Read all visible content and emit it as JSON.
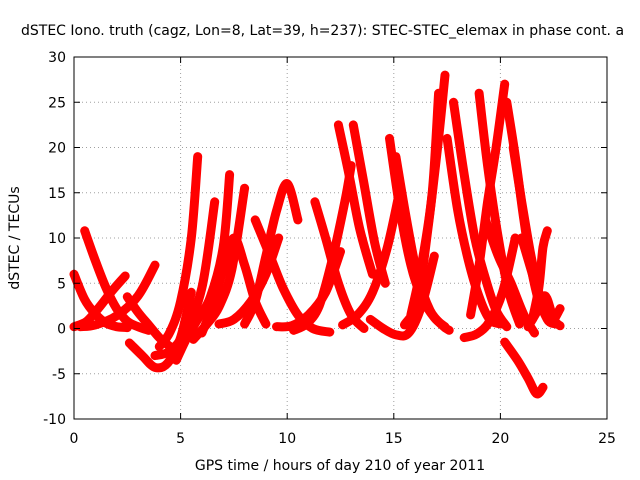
{
  "chart_data": {
    "type": "scatter",
    "title": "dSTEC Iono. truth (cagz, Lon=8, Lat=39, h=237): STEC-STEC_elemax in phase cont. a",
    "xlabel": "GPS time / hours of day 210 of year 2011",
    "ylabel": "dSTEC  / TECUs",
    "xlim": [
      0,
      25
    ],
    "ylim": [
      -10,
      30
    ],
    "xticks": [
      0,
      5,
      10,
      15,
      20,
      25
    ],
    "yticks": [
      -10,
      -5,
      0,
      5,
      10,
      15,
      20,
      25,
      30
    ],
    "grid": true,
    "marker": "plus",
    "color": "#ff0000",
    "series": [
      {
        "x": [
          0.0,
          0.5,
          1.0,
          1.5,
          2.0,
          2.5
        ],
        "y": [
          6.0,
          3.2,
          1.6,
          0.6,
          0.2,
          0.1
        ]
      },
      {
        "x": [
          0.0,
          0.6,
          1.2,
          1.8,
          2.4
        ],
        "y": [
          0.2,
          0.8,
          2.4,
          4.2,
          5.8
        ]
      },
      {
        "x": [
          0.5,
          1.0,
          1.5,
          2.0,
          2.5,
          3.0,
          3.5
        ],
        "y": [
          10.8,
          7.5,
          4.5,
          2.2,
          0.8,
          0.2,
          -0.2
        ]
      },
      {
        "x": [
          0.3,
          1.0,
          2.0,
          3.0,
          3.8
        ],
        "y": [
          0.2,
          0.4,
          1.4,
          3.6,
          7.0
        ]
      },
      {
        "x": [
          2.5,
          3.0,
          3.5,
          4.0,
          4.5
        ],
        "y": [
          3.5,
          1.8,
          0.4,
          -1.0,
          -2.0
        ]
      },
      {
        "x": [
          2.6,
          3.2,
          3.8,
          4.4,
          5.0,
          5.5
        ],
        "y": [
          -1.6,
          -3.0,
          -4.3,
          -3.8,
          -1.0,
          4.0
        ]
      },
      {
        "x": [
          4.0,
          4.5,
          5.0,
          5.5,
          5.8
        ],
        "y": [
          -2.0,
          -0.4,
          3.0,
          10.0,
          19.0
        ]
      },
      {
        "x": [
          3.8,
          4.5,
          5.2,
          6.0,
          6.6
        ],
        "y": [
          -3.0,
          -2.5,
          -0.4,
          4.5,
          14.0
        ]
      },
      {
        "x": [
          4.8,
          5.3,
          5.8,
          6.4,
          7.0,
          7.3
        ],
        "y": [
          -3.5,
          -1.0,
          1.0,
          3.5,
          9.0,
          17.0
        ]
      },
      {
        "x": [
          5.6,
          6.2,
          6.8,
          7.4,
          8.0
        ],
        "y": [
          -1.2,
          0.4,
          2.4,
          6.5,
          15.5
        ]
      },
      {
        "x": [
          6.0,
          6.5,
          7.0,
          7.5,
          8.0,
          8.5,
          9.0
        ],
        "y": [
          -0.5,
          2.5,
          6.5,
          10.0,
          7.0,
          3.0,
          0.5
        ]
      },
      {
        "x": [
          6.8,
          7.5,
          8.3,
          9.0,
          9.6
        ],
        "y": [
          0.5,
          1.0,
          3.0,
          6.0,
          10.0
        ]
      },
      {
        "x": [
          8.0,
          8.5,
          9.0,
          9.5,
          10.0,
          10.5
        ],
        "y": [
          0.5,
          3.0,
          8.0,
          13.0,
          16.0,
          12.0
        ]
      },
      {
        "x": [
          8.5,
          9.2,
          9.8,
          10.5,
          11.2,
          12.0
        ],
        "y": [
          12.0,
          8.0,
          4.5,
          1.5,
          0.0,
          -0.4
        ]
      },
      {
        "x": [
          9.5,
          10.2,
          11.0,
          11.8,
          12.5
        ],
        "y": [
          0.2,
          0.3,
          1.5,
          4.0,
          8.5
        ]
      },
      {
        "x": [
          10.3,
          10.9,
          11.5,
          12.1,
          12.7,
          13.0
        ],
        "y": [
          -0.2,
          0.5,
          2.5,
          7.5,
          14.0,
          18.0
        ]
      },
      {
        "x": [
          11.3,
          11.8,
          12.4,
          13.0,
          13.6
        ],
        "y": [
          14.0,
          10.0,
          5.0,
          1.5,
          0.0
        ]
      },
      {
        "x": [
          12.4,
          12.9,
          13.4,
          14.0
        ],
        "y": [
          22.5,
          17.0,
          11.0,
          6.0
        ]
      },
      {
        "x": [
          12.6,
          13.3,
          14.0,
          14.7,
          15.3
        ],
        "y": [
          0.4,
          1.5,
          4.0,
          9.0,
          15.5
        ]
      },
      {
        "x": [
          13.1,
          13.6,
          14.1,
          14.6
        ],
        "y": [
          22.5,
          16.0,
          9.5,
          5.0
        ]
      },
      {
        "x": [
          13.9,
          14.5,
          15.1,
          15.7,
          16.3,
          16.9
        ],
        "y": [
          1.0,
          0.0,
          -0.7,
          -0.5,
          2.5,
          8.0
        ]
      },
      {
        "x": [
          14.8,
          15.3,
          15.8,
          16.3,
          16.9,
          17.4
        ],
        "y": [
          21.0,
          13.0,
          7.0,
          3.5,
          1.2,
          0.2
        ]
      },
      {
        "x": [
          15.1,
          15.6,
          16.1,
          16.7,
          17.3,
          17.6
        ],
        "y": [
          19.0,
          12.0,
          6.0,
          2.0,
          0.3,
          -0.2
        ]
      },
      {
        "x": [
          15.5,
          16.1,
          16.6,
          17.1,
          17.4
        ],
        "y": [
          0.4,
          3.0,
          11.0,
          21.0,
          28.0
        ]
      },
      {
        "x": [
          15.8,
          16.3,
          16.8,
          17.1
        ],
        "y": [
          1.5,
          7.0,
          15.0,
          26.0
        ]
      },
      {
        "x": [
          17.5,
          18.0,
          18.5,
          19.0,
          19.5,
          20.0
        ],
        "y": [
          21.0,
          13.0,
          7.5,
          3.5,
          1.0,
          0.5
        ]
      },
      {
        "x": [
          17.8,
          18.3,
          18.8,
          19.3,
          19.8,
          20.3
        ],
        "y": [
          25.0,
          17.0,
          10.0,
          5.5,
          2.0,
          0.2
        ]
      },
      {
        "x": [
          18.3,
          18.9,
          19.5,
          20.1,
          20.7
        ],
        "y": [
          -1.0,
          -0.6,
          0.8,
          4.0,
          10.0
        ]
      },
      {
        "x": [
          18.6,
          19.0,
          19.4,
          19.8,
          20.2
        ],
        "y": [
          1.5,
          7.0,
          14.0,
          20.0,
          27.0
        ]
      },
      {
        "x": [
          19.0,
          19.4,
          19.9,
          20.4,
          20.9
        ],
        "y": [
          26.0,
          18.0,
          10.0,
          4.0,
          0.5
        ]
      },
      {
        "x": [
          19.3,
          19.9,
          20.5,
          21.1,
          21.6
        ],
        "y": [
          12.0,
          8.0,
          5.0,
          1.5,
          -0.5
        ]
      },
      {
        "x": [
          20.3,
          20.7,
          21.1,
          21.5,
          21.9
        ],
        "y": [
          25.0,
          19.0,
          12.0,
          6.0,
          2.0
        ]
      },
      {
        "x": [
          20.6,
          21.0,
          21.4,
          21.8,
          22.2,
          22.6
        ],
        "y": [
          20.0,
          14.0,
          8.5,
          4.0,
          1.0,
          0.5
        ]
      },
      {
        "x": [
          20.2,
          20.8,
          21.3,
          21.7,
          22.0
        ],
        "y": [
          -1.5,
          -3.5,
          -5.5,
          -7.2,
          -6.5
        ]
      },
      {
        "x": [
          21.5,
          21.8,
          22.0,
          22.2
        ],
        "y": [
          1.0,
          4.5,
          9.0,
          10.8
        ]
      },
      {
        "x": [
          21.0,
          21.5,
          22.0,
          22.4,
          22.8
        ],
        "y": [
          10.0,
          6.0,
          2.0,
          0.8,
          2.2
        ]
      },
      {
        "x": [
          21.3,
          21.7,
          22.1,
          22.5,
          22.8
        ],
        "y": [
          0.2,
          1.8,
          3.6,
          1.0,
          0.3
        ]
      }
    ]
  }
}
